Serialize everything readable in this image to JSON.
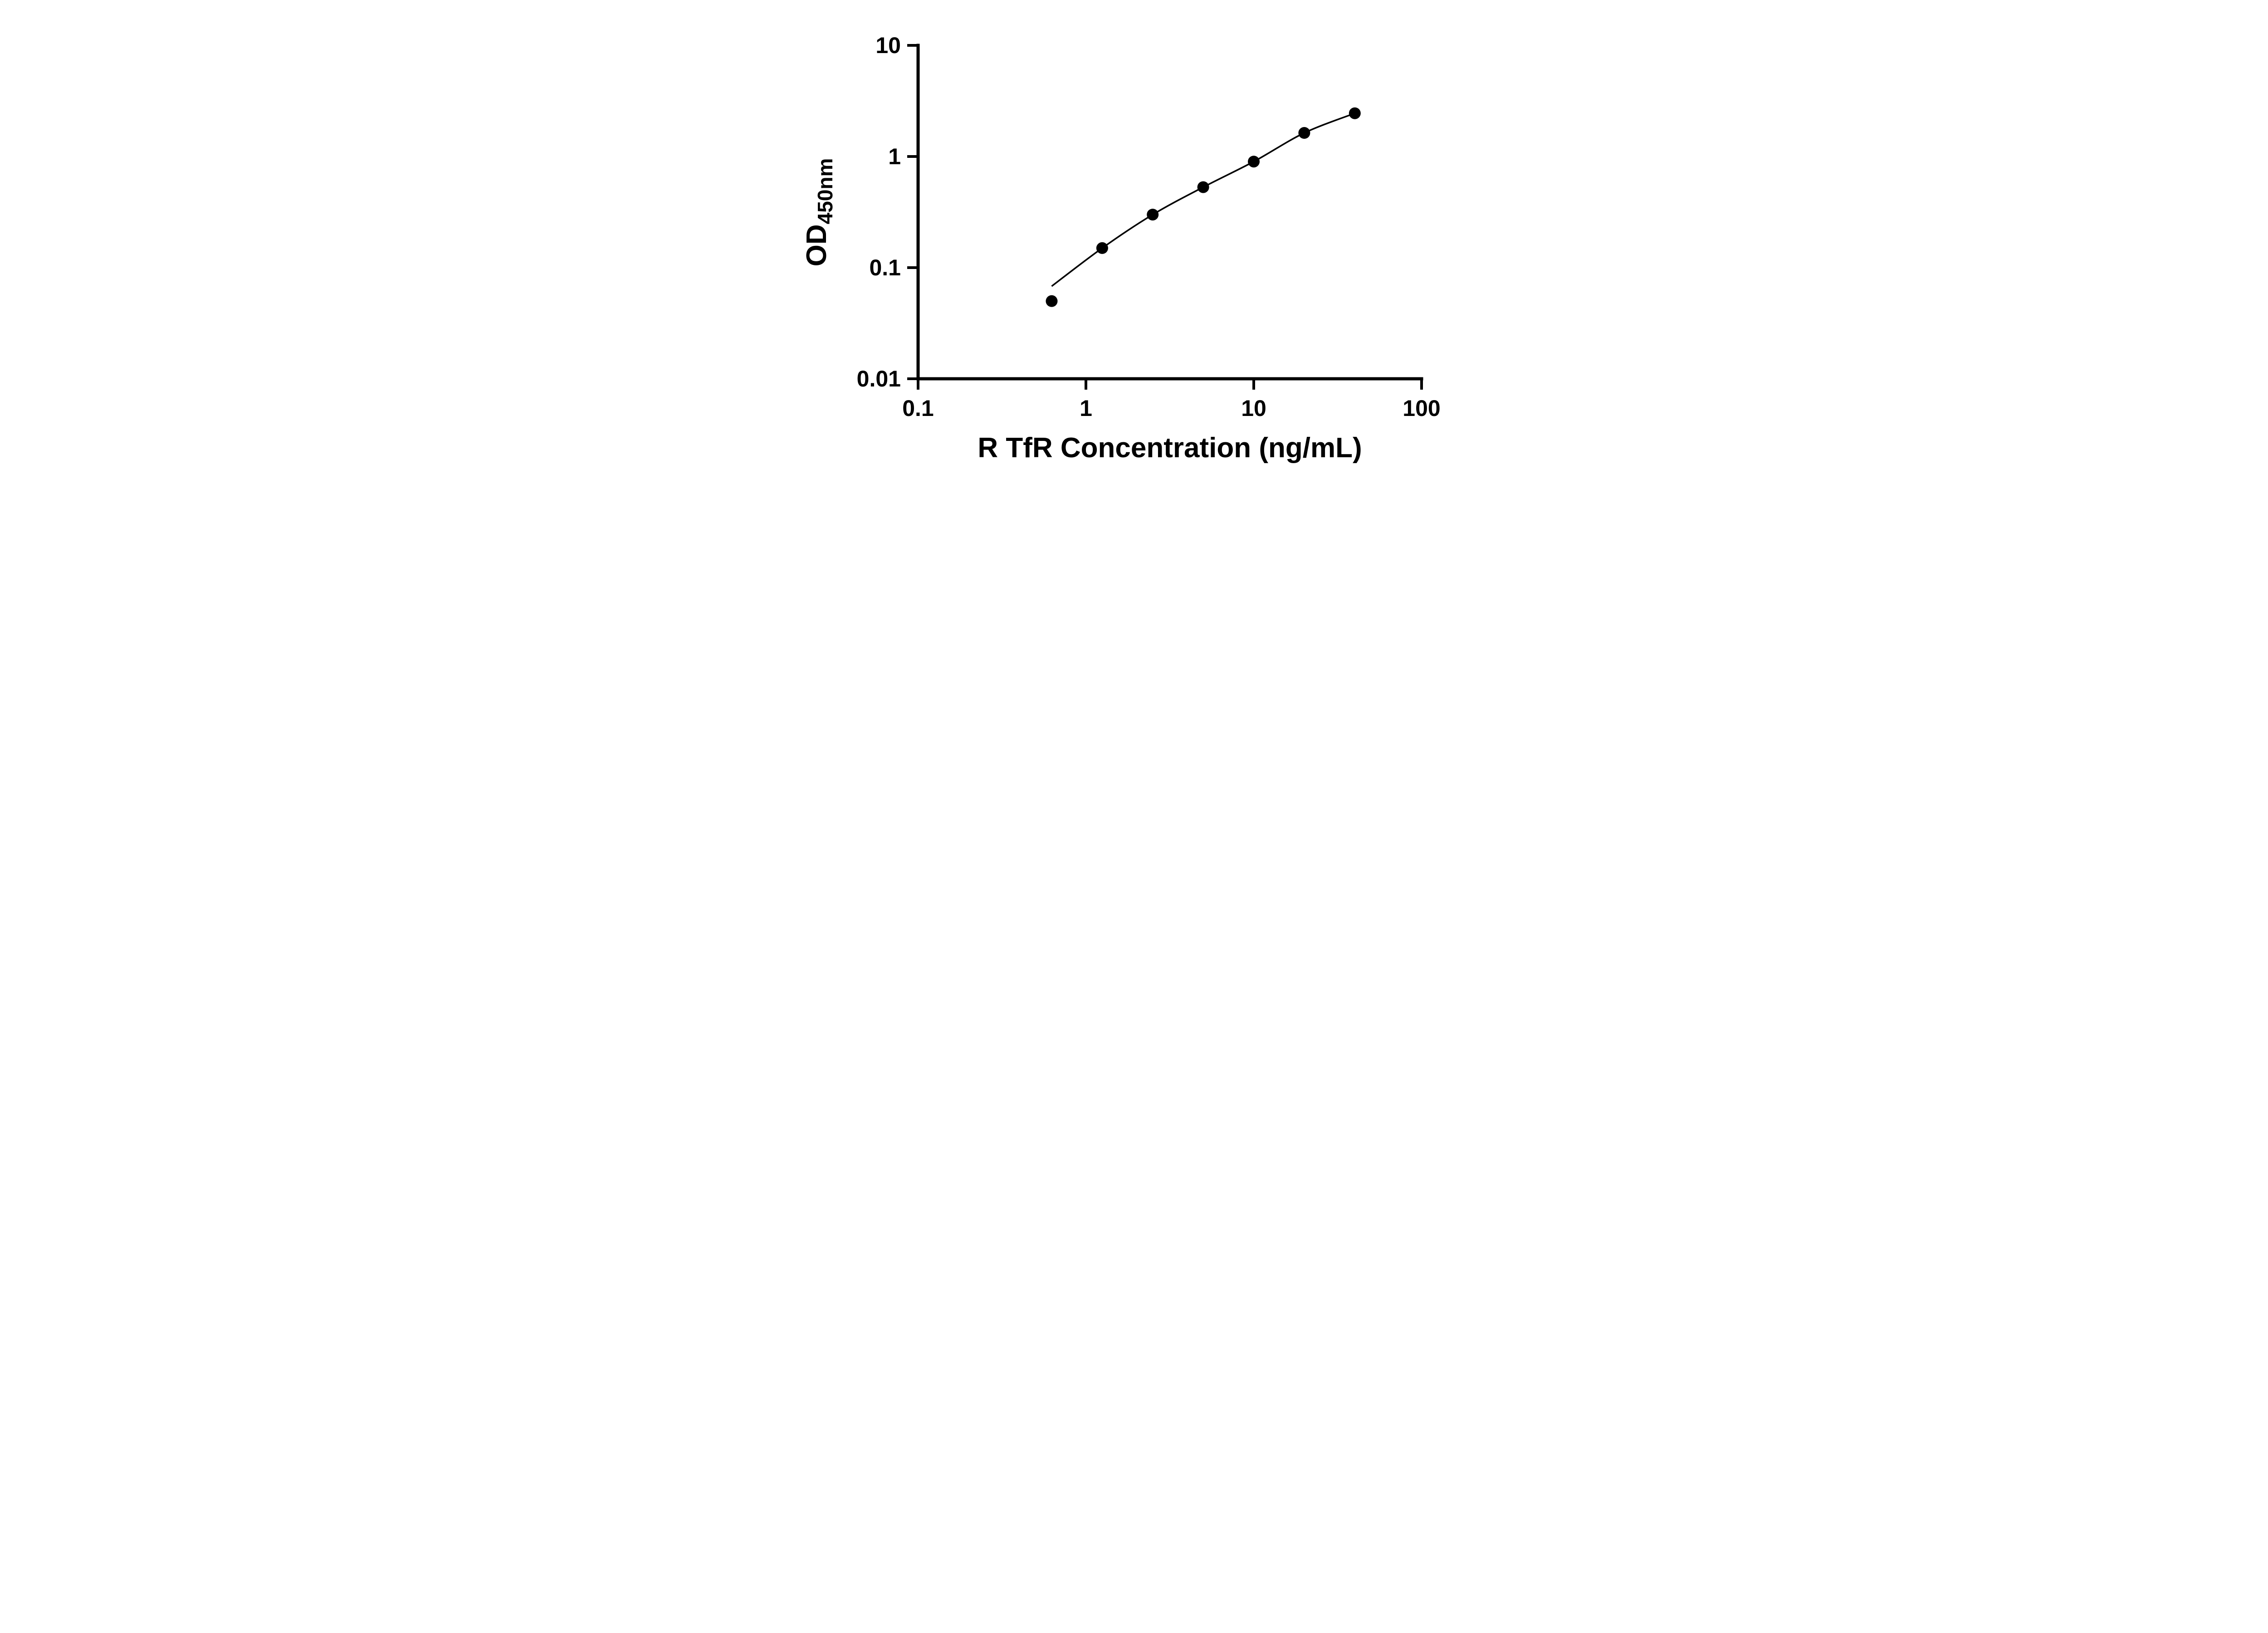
{
  "chart_data": {
    "type": "scatter",
    "title": "",
    "xlabel": "R TfR Concentration (ng/mL)",
    "ylabel_main": "OD",
    "ylabel_sub": "450nm",
    "x_scale": "log",
    "y_scale": "log",
    "xlim": [
      0.1,
      100
    ],
    "ylim": [
      0.01,
      10
    ],
    "grid": false,
    "legend": "none",
    "axis_color": "#000000",
    "marker_color": "#000000",
    "line_color": "#000000",
    "x_ticks": [
      {
        "value": 0.1,
        "label": "0.1"
      },
      {
        "value": 1,
        "label": "1"
      },
      {
        "value": 10,
        "label": "10"
      },
      {
        "value": 100,
        "label": "100"
      }
    ],
    "y_ticks": [
      {
        "value": 0.01,
        "label": "0.01"
      },
      {
        "value": 0.1,
        "label": "0.1"
      },
      {
        "value": 1,
        "label": "1"
      },
      {
        "value": 10,
        "label": "10"
      }
    ],
    "points": [
      [
        0.625,
        0.05
      ],
      [
        1.25,
        0.15
      ],
      [
        2.5,
        0.3
      ],
      [
        5,
        0.53
      ],
      [
        10,
        0.9
      ],
      [
        20,
        1.63
      ],
      [
        40,
        2.45
      ]
    ],
    "curve": [
      [
        0.625,
        0.068
      ],
      [
        1.25,
        0.15
      ],
      [
        2.5,
        0.3
      ],
      [
        5,
        0.53
      ],
      [
        10,
        0.9
      ],
      [
        20,
        1.63
      ],
      [
        40,
        2.45
      ]
    ]
  }
}
